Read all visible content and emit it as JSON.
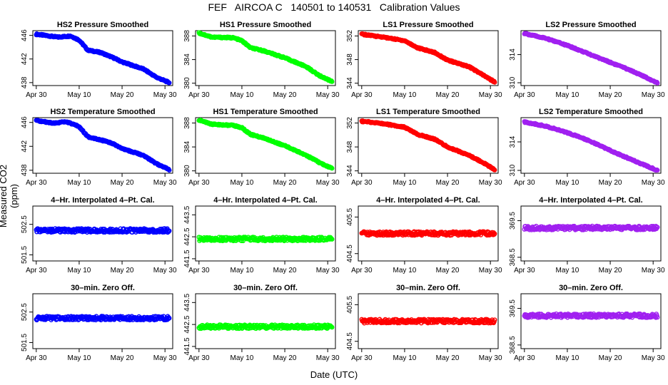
{
  "header": {
    "title": "FEF   AIRCOA C   140501 to 140531   Calibration Values"
  },
  "axes": {
    "xlabel": "Date (UTC)",
    "ylabel": "Measured CO2 (ppm)"
  },
  "colors": {
    "HS2": "#0000ff",
    "HS1": "#00ff00",
    "LS1": "#ff0000",
    "LS2": "#a020f0",
    "axis": "#000000"
  },
  "chart_data": [
    {
      "type": "scatter",
      "title": "HS2 Pressure Smoothed",
      "xlabel": "",
      "ylabel": "",
      "x_ticks": [
        "Apr 30",
        "May 10",
        "May 20",
        "May 30"
      ],
      "y_ticks": [
        "438",
        "442",
        "446"
      ],
      "ylim": [
        437.5,
        446.8
      ],
      "series": [
        {
          "x": [
            "Apr 30",
            "May 5",
            "May 8",
            "May 10",
            "May 12",
            "May 15",
            "May 18",
            "May 20",
            "May 25",
            "May 28",
            "May 31"
          ],
          "y": [
            446.2,
            445.7,
            445.9,
            445.2,
            443.5,
            443.1,
            442.2,
            441.5,
            440.3,
            438.9,
            438.0
          ]
        }
      ]
    },
    {
      "type": "scatter",
      "title": "HS1 Pressure Smoothed",
      "xlabel": "",
      "ylabel": "",
      "x_ticks": [
        "Apr 30",
        "May 10",
        "May 20",
        "May 30"
      ],
      "y_ticks": [
        "380",
        "384",
        "388"
      ],
      "ylim": [
        379.6,
        388.9
      ],
      "series": [
        {
          "x": [
            "Apr 30",
            "May 3",
            "May 8",
            "May 10",
            "May 12",
            "May 15",
            "May 20",
            "May 25",
            "May 28",
            "May 31"
          ],
          "y": [
            388.5,
            387.8,
            387.7,
            387.2,
            386.0,
            385.5,
            384.3,
            382.8,
            381.3,
            380.3
          ]
        }
      ]
    },
    {
      "type": "scatter",
      "title": "LS1 Pressure Smoothed",
      "xlabel": "",
      "ylabel": "",
      "x_ticks": [
        "Apr 30",
        "May 10",
        "May 20",
        "May 30"
      ],
      "y_ticks": [
        "344",
        "348",
        "352"
      ],
      "ylim": [
        343.6,
        352.9
      ],
      "series": [
        {
          "x": [
            "Apr 30",
            "May 5",
            "May 10",
            "May 13",
            "May 17",
            "May 20",
            "May 25",
            "May 28",
            "May 31"
          ],
          "y": [
            352.3,
            351.8,
            351.2,
            350.0,
            349.2,
            347.9,
            346.8,
            345.5,
            344.2
          ]
        }
      ]
    },
    {
      "type": "scatter",
      "title": "LS2 Pressure Smoothed",
      "xlabel": "",
      "ylabel": "",
      "x_ticks": [
        "Apr 30",
        "May 10",
        "May 20",
        "May 30"
      ],
      "y_ticks": [
        "310",
        "314"
      ],
      "ylim": [
        309.6,
        317.4
      ],
      "series": [
        {
          "x": [
            "Apr 30",
            "May 5",
            "May 10",
            "May 15",
            "May 20",
            "May 25",
            "May 31"
          ],
          "y": [
            317.0,
            316.3,
            315.3,
            314.1,
            312.9,
            311.7,
            310.0
          ]
        }
      ]
    },
    {
      "type": "scatter",
      "title": "HS2 Temperature Smoothed",
      "xlabel": "",
      "ylabel": "",
      "x_ticks": [
        "Apr 30",
        "May 10",
        "May 20",
        "May 30"
      ],
      "y_ticks": [
        "438",
        "442",
        "446"
      ],
      "ylim": [
        437.5,
        446.8
      ],
      "series": [
        {
          "x": [
            "Apr 30",
            "May 4",
            "May 7",
            "May 10",
            "May 12",
            "May 15",
            "May 18",
            "May 20",
            "May 25",
            "May 28",
            "May 31"
          ],
          "y": [
            446.3,
            445.9,
            446.1,
            445.3,
            443.6,
            443.1,
            442.4,
            441.6,
            440.5,
            439.1,
            438.1
          ]
        }
      ]
    },
    {
      "type": "scatter",
      "title": "HS1 Temperature Smoothed",
      "xlabel": "",
      "ylabel": "",
      "x_ticks": [
        "Apr 30",
        "May 10",
        "May 20",
        "May 30"
      ],
      "y_ticks": [
        "380",
        "384",
        "388"
      ],
      "ylim": [
        379.6,
        388.9
      ],
      "series": [
        {
          "x": [
            "Apr 30",
            "May 3",
            "May 8",
            "May 10",
            "May 12",
            "May 15",
            "May 20",
            "May 25",
            "May 28",
            "May 31"
          ],
          "y": [
            388.5,
            387.8,
            387.6,
            387.2,
            386.1,
            385.5,
            384.2,
            382.6,
            381.4,
            380.4
          ]
        }
      ]
    },
    {
      "type": "scatter",
      "title": "LS1 Temperature Smoothed",
      "xlabel": "",
      "ylabel": "",
      "x_ticks": [
        "Apr 30",
        "May 10",
        "May 20",
        "May 30"
      ],
      "y_ticks": [
        "344",
        "348",
        "352"
      ],
      "ylim": [
        343.6,
        352.9
      ],
      "series": [
        {
          "x": [
            "Apr 30",
            "May 5",
            "May 10",
            "May 13",
            "May 17",
            "May 20",
            "May 25",
            "May 28",
            "May 31"
          ],
          "y": [
            352.3,
            351.9,
            351.3,
            350.1,
            349.3,
            348.0,
            346.6,
            345.5,
            344.2
          ]
        }
      ]
    },
    {
      "type": "scatter",
      "title": "LS2 Temperature Smoothed",
      "xlabel": "",
      "ylabel": "",
      "x_ticks": [
        "Apr 30",
        "May 10",
        "May 20",
        "May 30"
      ],
      "y_ticks": [
        "310",
        "314"
      ],
      "ylim": [
        309.6,
        317.4
      ],
      "series": [
        {
          "x": [
            "Apr 30",
            "May 5",
            "May 10",
            "May 15",
            "May 20",
            "May 25",
            "May 31"
          ],
          "y": [
            316.8,
            316.2,
            315.3,
            314.2,
            312.8,
            311.5,
            310.0
          ]
        }
      ]
    },
    {
      "type": "scatter",
      "title": "4–Hr. Interpolated 4–Pt. Cal.",
      "xlabel": "",
      "ylabel": "",
      "x_ticks": [
        "Apr 30",
        "May 10",
        "May 20",
        "May 30"
      ],
      "y_ticks": [
        "501.5",
        "502.5"
      ],
      "ylim": [
        501.3,
        503.1
      ],
      "series": [
        {
          "x": [
            "Apr 30",
            "May 31"
          ],
          "y": [
            502.3,
            502.3
          ]
        }
      ]
    },
    {
      "type": "scatter",
      "title": "4–Hr. Interpolated 4–Pt. Cal.",
      "xlabel": "",
      "ylabel": "",
      "x_ticks": [
        "Apr 30",
        "May 10",
        "May 20",
        "May 30"
      ],
      "y_ticks": [
        "441.5",
        "442.5",
        "443.5"
      ],
      "ylim": [
        441.4,
        443.9
      ],
      "series": [
        {
          "x": [
            "Apr 30",
            "May 31"
          ],
          "y": [
            442.4,
            442.4
          ]
        }
      ]
    },
    {
      "type": "scatter",
      "title": "4–Hr. Interpolated 4–Pt. Cal.",
      "xlabel": "",
      "ylabel": "",
      "x_ticks": [
        "Apr 30",
        "May 10",
        "May 20",
        "May 30"
      ],
      "y_ticks": [
        "404.5",
        "405.5"
      ],
      "ylim": [
        404.3,
        405.8
      ],
      "series": [
        {
          "x": [
            "Apr 30",
            "May 31"
          ],
          "y": [
            405.05,
            405.05
          ]
        }
      ]
    },
    {
      "type": "scatter",
      "title": "4–Hr. Interpolated 4–Pt. Cal.",
      "xlabel": "",
      "ylabel": "",
      "x_ticks": [
        "Apr 30",
        "May 10",
        "May 20",
        "May 30"
      ],
      "y_ticks": [
        "368.5",
        "369.5"
      ],
      "ylim": [
        368.4,
        369.9
      ],
      "series": [
        {
          "x": [
            "Apr 30",
            "May 31"
          ],
          "y": [
            369.3,
            369.3
          ]
        }
      ]
    },
    {
      "type": "scatter",
      "title": "30–min. Zero Off.",
      "xlabel": "",
      "ylabel": "",
      "x_ticks": [
        "Apr 30",
        "May 10",
        "May 20",
        "May 30"
      ],
      "y_ticks": [
        "501.5",
        "502.5"
      ],
      "ylim": [
        501.3,
        503.1
      ],
      "series": [
        {
          "x": [
            "Apr 30",
            "May 31"
          ],
          "y": [
            502.3,
            502.3
          ]
        }
      ]
    },
    {
      "type": "scatter",
      "title": "30–min. Zero Off.",
      "xlabel": "",
      "ylabel": "",
      "x_ticks": [
        "Apr 30",
        "May 10",
        "May 20",
        "May 30"
      ],
      "y_ticks": [
        "441.5",
        "442.5",
        "443.5"
      ],
      "ylim": [
        441.4,
        443.9
      ],
      "series": [
        {
          "x": [
            "Apr 30",
            "May 31"
          ],
          "y": [
            442.4,
            442.4
          ]
        }
      ]
    },
    {
      "type": "scatter",
      "title": "30–min. Zero Off.",
      "xlabel": "",
      "ylabel": "",
      "x_ticks": [
        "Apr 30",
        "May 10",
        "May 20",
        "May 30"
      ],
      "y_ticks": [
        "404.5",
        "405.5"
      ],
      "ylim": [
        404.3,
        405.8
      ],
      "series": [
        {
          "x": [
            "Apr 30",
            "May 31"
          ],
          "y": [
            405.05,
            405.05
          ]
        }
      ]
    },
    {
      "type": "scatter",
      "title": "30–min. Zero Off.",
      "xlabel": "",
      "ylabel": "",
      "x_ticks": [
        "Apr 30",
        "May 10",
        "May 20",
        "May 30"
      ],
      "y_ticks": [
        "368.5",
        "369.5"
      ],
      "ylim": [
        368.4,
        369.9
      ],
      "series": [
        {
          "x": [
            "Apr 30",
            "May 31"
          ],
          "y": [
            369.3,
            369.3
          ]
        }
      ]
    }
  ]
}
